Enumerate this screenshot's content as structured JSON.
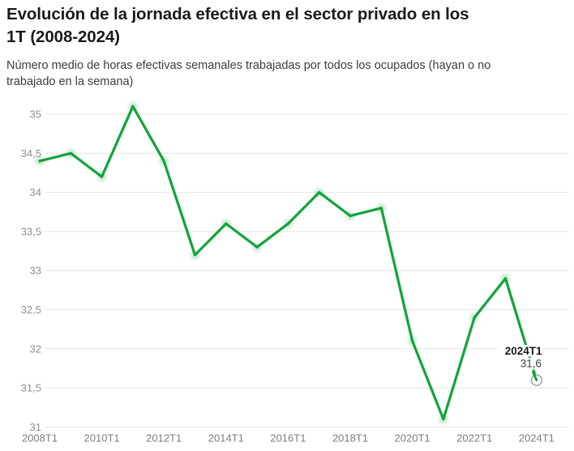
{
  "header": {
    "title_lines": [
      "Evolución de la jornada efectiva en el sector privado en los",
      "1T (2008-2024)"
    ],
    "subtitle_lines": [
      "Número medio de horas efectivas semanales trabajadas por todos los ocupados (hayan o no",
      "trabajado en la semana)"
    ]
  },
  "chart_data": {
    "type": "line",
    "title": "Evolución de la jornada efectiva en el sector privado en los 1T (2008-2024)",
    "subtitle": "Número medio de horas efectivas semanales trabajadas por todos los ocupados (hayan o no trabajado en la semana)",
    "x": [
      "2008T1",
      "2009T1",
      "2010T1",
      "2011T1",
      "2012T1",
      "2013T1",
      "2014T1",
      "2015T1",
      "2016T1",
      "2017T1",
      "2018T1",
      "2019T1",
      "2020T1",
      "2021T1",
      "2022T1",
      "2023T1",
      "2024T1"
    ],
    "values": [
      34.4,
      34.5,
      34.2,
      35.1,
      34.4,
      33.2,
      33.6,
      33.3,
      33.6,
      34.0,
      33.7,
      33.8,
      32.1,
      31.1,
      32.4,
      32.9,
      31.6
    ],
    "x_tick_labels": [
      "2008T1",
      "2010T1",
      "2012T1",
      "2014T1",
      "2016T1",
      "2018T1",
      "2020T1",
      "2022T1",
      "2024T1"
    ],
    "y_ticks": [
      31,
      31.5,
      32,
      32.5,
      33,
      33.5,
      34,
      34.5,
      35
    ],
    "y_tick_labels": [
      "31",
      "31,5",
      "32",
      "32,5",
      "33",
      "33,5",
      "34",
      "34,5",
      "35"
    ],
    "ylim": [
      31,
      35.25
    ],
    "grid": "horizontal-only",
    "legend": "none",
    "annotation": {
      "label": "2024T1",
      "value_label": "31,6",
      "x": "2024T1",
      "y": 31.6
    }
  },
  "colors": {
    "background": "#ffffff",
    "title": "#1a1a1a",
    "subtitle": "#3c3c3c",
    "y_axis_label": "#8f8f8f",
    "x_axis_label": "#7d7d7d",
    "gridline": "#e4e4e4",
    "line": "#12a43c",
    "marker_fill": "#ffffff",
    "marker_stroke": "#a3a3a3",
    "annotation_label": "#1a1a1a",
    "annotation_value": "#3c3c3c"
  }
}
